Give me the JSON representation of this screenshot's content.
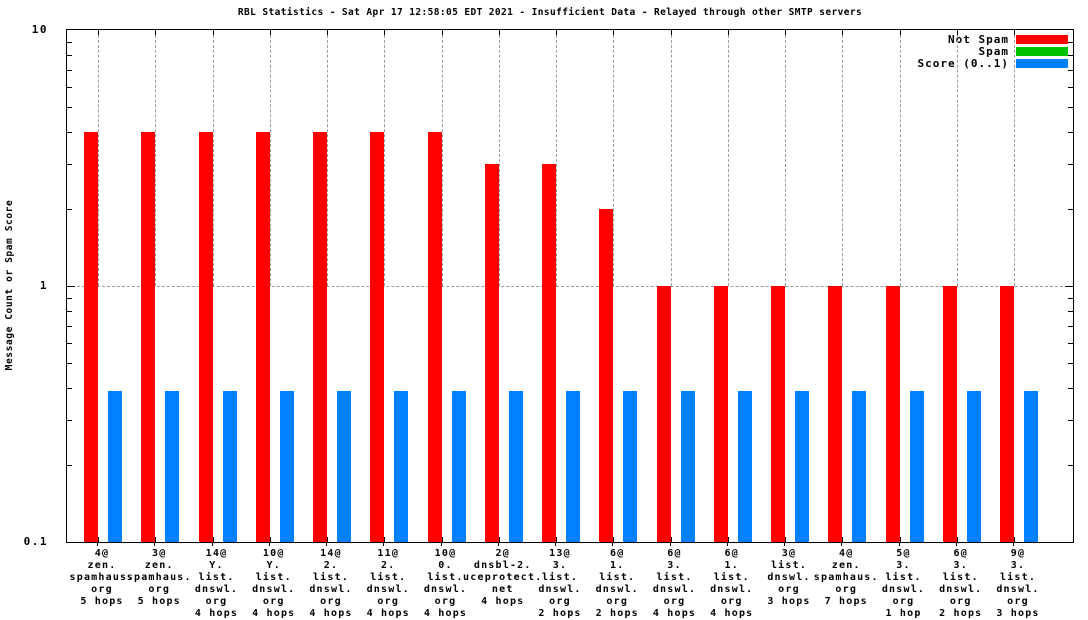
{
  "window": {
    "title": "RBL Statistics - Sat Apr 17 12:58:05 EDT 2021 - Insufficient Data - Relayed through other SMTP servers"
  },
  "chart_data": {
    "type": "bar",
    "title": "RBL Statistics - Sat Apr 17 12:58:05 EDT 2021 - Insufficient Data - Relayed through other SMTP servers",
    "xlabel": "",
    "ylabel": "Message Count or Spam Score",
    "y_scale": "log",
    "ylim": [
      0.1,
      10
    ],
    "yticks": [
      {
        "label": "10",
        "value": 10
      },
      {
        "label": "1",
        "value": 1
      },
      {
        "label": "0.1",
        "value": 0.1
      }
    ],
    "grid": {
      "horizontal_gridline_at": 1,
      "vertical_gridlines": "dashed at each category center, from top down to y=1"
    },
    "legend_position": "top-right",
    "legend": [
      {
        "label": "Not Spam",
        "color": "#ff0000"
      },
      {
        "label": "Spam",
        "color": "#00c000"
      },
      {
        "label": "Score (0..1)",
        "color": "#0080ff"
      }
    ],
    "categories": [
      [
        "4@",
        "zen.",
        "spamhaus.",
        "org",
        "5 hops"
      ],
      [
        "3@",
        "zen.",
        "spamhaus.",
        "org",
        "5 hops"
      ],
      [
        "14@",
        "Y.",
        "list.",
        "dnswl.",
        "org",
        "4 hops"
      ],
      [
        "10@",
        "Y.",
        "list.",
        "dnswl.",
        "org",
        "4 hops"
      ],
      [
        "14@",
        "2.",
        "list.",
        "dnswl.",
        "org",
        "4 hops"
      ],
      [
        "11@",
        "2.",
        "list.",
        "dnswl.",
        "org",
        "4 hops"
      ],
      [
        "10@",
        "0.",
        "list.",
        "dnswl.",
        "org",
        "4 hops"
      ],
      [
        "2@",
        "dnsbl-2.",
        "uceprotect.",
        "net",
        "4 hops"
      ],
      [
        "13@",
        "3.",
        "list.",
        "dnswl.",
        "org",
        "2 hops"
      ],
      [
        "6@",
        "1.",
        "list.",
        "dnswl.",
        "org",
        "2 hops"
      ],
      [
        "6@",
        "3.",
        "list.",
        "dnswl.",
        "org",
        "4 hops"
      ],
      [
        "6@",
        "1.",
        "list.",
        "dnswl.",
        "org",
        "4 hops"
      ],
      [
        "3@",
        "list.",
        "dnswl.",
        "org",
        "3 hops"
      ],
      [
        "4@",
        "zen.",
        "spamhaus.",
        "org",
        "7 hops"
      ],
      [
        "5@",
        "3.",
        "list.",
        "dnswl.",
        "org",
        "1 hop"
      ],
      [
        "6@",
        "3.",
        "list.",
        "dnswl.",
        "org",
        "2 hops"
      ],
      [
        "9@",
        "3.",
        "list.",
        "dnswl.",
        "org",
        "3 hops"
      ]
    ],
    "series": [
      {
        "name": "Not Spam",
        "color": "#ff0000",
        "values": [
          4,
          4,
          4,
          4,
          4,
          4,
          4,
          3,
          3,
          2,
          1,
          1,
          1,
          1,
          1,
          1,
          1
        ]
      },
      {
        "name": "Spam",
        "color": "#00c000",
        "values": [
          0,
          0,
          0,
          0,
          0,
          0,
          0,
          0,
          0,
          0,
          0,
          0,
          0,
          0,
          0,
          0,
          0
        ]
      },
      {
        "name": "Score (0..1)",
        "color": "#0080ff",
        "values": [
          0.39,
          0.39,
          0.39,
          0.39,
          0.39,
          0.39,
          0.39,
          0.39,
          0.39,
          0.39,
          0.39,
          0.39,
          0.39,
          0.39,
          0.39,
          0.39,
          0.39
        ]
      }
    ]
  }
}
